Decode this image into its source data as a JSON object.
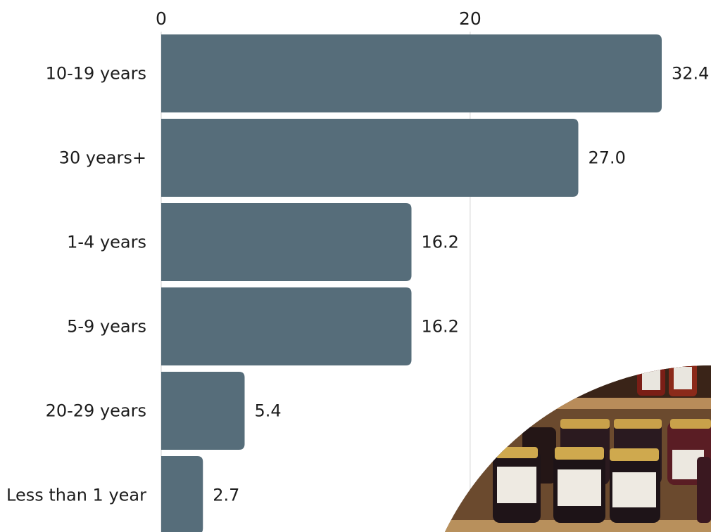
{
  "chart_data": {
    "type": "bar",
    "orientation": "horizontal",
    "categories": [
      "10-19 years",
      "30 years+",
      "1-4 years",
      "5-9 years",
      "20-29 years",
      "Less than 1 year"
    ],
    "values": [
      32.4,
      27.0,
      16.2,
      16.2,
      5.4,
      2.7
    ],
    "value_labels": [
      "32.4",
      "27.0",
      "16.2",
      "16.2",
      "5.4",
      "2.7"
    ],
    "x_ticks": [
      0,
      20
    ],
    "x_tick_labels": [
      "0",
      "20"
    ],
    "xlim": [
      0,
      32.4
    ],
    "x_axis_position": "top",
    "grid": true,
    "title": "",
    "xlabel": "",
    "ylabel": "",
    "bar_color": "#566d7a",
    "gridline_color": "#d3d3d3",
    "text_color": "#1c1c1c"
  },
  "photo": {
    "description_icon": "jam-jars-photo"
  }
}
